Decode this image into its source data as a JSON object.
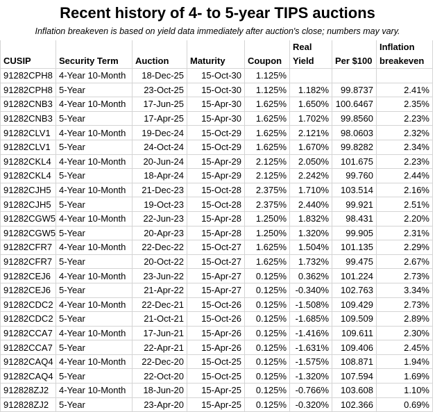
{
  "title": "Recent history of 4- to 5-year TIPS auctions",
  "subtitle": "Inflation breakeven is based on yield data immediately after auction's close; numbers may vary.",
  "headers": {
    "cusip": "CUSIP",
    "term": "Security Term",
    "auction": "Auction",
    "maturity": "Maturity",
    "coupon": "Coupon",
    "real_yield_1": "Real",
    "real_yield_2": "Yield",
    "price": "Per $100",
    "breakeven_1": "Inflation",
    "breakeven_2": "breakeven"
  },
  "rows": [
    [
      "91282CPH8",
      "4-Year 10-Month",
      "18-Dec-25",
      "15-Oct-30",
      "1.125%",
      "",
      "",
      ""
    ],
    [
      "91282CPH8",
      "5-Year",
      "23-Oct-25",
      "15-Oct-30",
      "1.125%",
      "1.182%",
      "99.8737",
      "2.41%"
    ],
    [
      "91282CNB3",
      "4-Year 10-Month",
      "17-Jun-25",
      "15-Apr-30",
      "1.625%",
      "1.650%",
      "100.6467",
      "2.35%"
    ],
    [
      "91282CNB3",
      "5-Year",
      "17-Apr-25",
      "15-Apr-30",
      "1.625%",
      "1.702%",
      "99.8560",
      "2.23%"
    ],
    [
      "91282CLV1",
      "4-Year 10-Month",
      "19-Dec-24",
      "15-Oct-29",
      "1.625%",
      "2.121%",
      "98.0603",
      "2.32%"
    ],
    [
      "91282CLV1",
      "5-Year",
      "24-Oct-24",
      "15-Oct-29",
      "1.625%",
      "1.670%",
      "99.8282",
      "2.34%"
    ],
    [
      "91282CKL4",
      "4-Year 10-Month",
      "20-Jun-24",
      "15-Apr-29",
      "2.125%",
      "2.050%",
      "101.675",
      "2.23%"
    ],
    [
      "91282CKL4",
      "5-Year",
      "18-Apr-24",
      "15-Apr-29",
      "2.125%",
      "2.242%",
      "99.760",
      "2.44%"
    ],
    [
      "91282CJH5",
      "4-Year 10-Month",
      "21-Dec-23",
      "15-Oct-28",
      "2.375%",
      "1.710%",
      "103.514",
      "2.16%"
    ],
    [
      "91282CJH5",
      "5-Year",
      "19-Oct-23",
      "15-Oct-28",
      "2.375%",
      "2.440%",
      "99.921",
      "2.51%"
    ],
    [
      "91282CGW5",
      "4-Year 10-Month",
      "22-Jun-23",
      "15-Apr-28",
      "1.250%",
      "1.832%",
      "98.431",
      "2.20%"
    ],
    [
      "91282CGW5",
      "5-Year",
      "20-Apr-23",
      "15-Apr-28",
      "1.250%",
      "1.320%",
      "99.905",
      "2.31%"
    ],
    [
      "91282CFR7",
      "4-Year 10-Month",
      "22-Dec-22",
      "15-Oct-27",
      "1.625%",
      "1.504%",
      "101.135",
      "2.29%"
    ],
    [
      "91282CFR7",
      "5-Year",
      "20-Oct-22",
      "15-Oct-27",
      "1.625%",
      "1.732%",
      "99.475",
      "2.67%"
    ],
    [
      "91282CEJ6",
      "4-Year 10-Month",
      "23-Jun-22",
      "15-Apr-27",
      "0.125%",
      "0.362%",
      "101.224",
      "2.73%"
    ],
    [
      "91282CEJ6",
      "5-Year",
      "21-Apr-22",
      "15-Apr-27",
      "0.125%",
      "-0.340%",
      "102.763",
      "3.34%"
    ],
    [
      "91282CDC2",
      "4-Year 10-Month",
      "22-Dec-21",
      "15-Oct-26",
      "0.125%",
      "-1.508%",
      "109.429",
      "2.73%"
    ],
    [
      "91282CDC2",
      "5-Year",
      "21-Oct-21",
      "15-Oct-26",
      "0.125%",
      "-1.685%",
      "109.509",
      "2.89%"
    ],
    [
      "91282CCA7",
      "4-Year 10-Month",
      "17-Jun-21",
      "15-Apr-26",
      "0.125%",
      "-1.416%",
      "109.611",
      "2.30%"
    ],
    [
      "91282CCA7",
      "5-Year",
      "22-Apr-21",
      "15-Apr-26",
      "0.125%",
      "-1.631%",
      "109.406",
      "2.45%"
    ],
    [
      "91282CAQ4",
      "4-Year 10-Month",
      "22-Dec-20",
      "15-Oct-25",
      "0.125%",
      "-1.575%",
      "108.871",
      "1.94%"
    ],
    [
      "91282CAQ4",
      "5-Year",
      "22-Oct-20",
      "15-Oct-25",
      "0.125%",
      "-1.320%",
      "107.594",
      "1.69%"
    ],
    [
      "912828ZJ2",
      "4-Year 10-Month",
      "18-Jun-20",
      "15-Apr-25",
      "0.125%",
      "-0.766%",
      "103.608",
      "1.10%"
    ],
    [
      "912828ZJ2",
      "5-Year",
      "23-Apr-20",
      "15-Apr-25",
      "0.125%",
      "-0.320%",
      "102.366",
      "0.69%"
    ]
  ]
}
